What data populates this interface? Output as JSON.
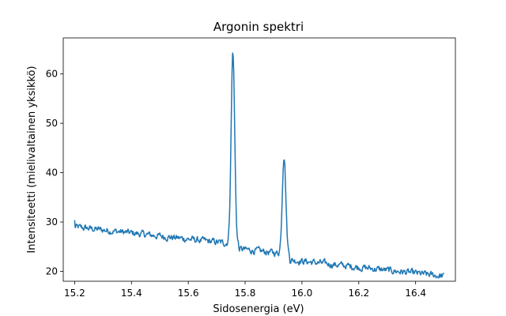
{
  "chart_data": {
    "type": "line",
    "title": "Argonin spektri",
    "xlabel": "Sidosenergia (eV)",
    "ylabel": "Intensiteetti (mielivaltainen yksikkö)",
    "xlim": [
      15.16,
      16.54
    ],
    "ylim": [
      18.0,
      67.3
    ],
    "xticks": [
      15.2,
      15.4,
      15.6,
      15.8,
      16.0,
      16.2,
      16.4
    ],
    "xtick_labels": [
      "15.2",
      "15.4",
      "15.6",
      "15.8",
      "16.0",
      "16.2",
      "16.4"
    ],
    "yticks": [
      20,
      30,
      40,
      50,
      60
    ],
    "ytick_labels": [
      "20",
      "30",
      "40",
      "50",
      "60"
    ],
    "grid": false,
    "color": "#1f77b4",
    "series": [
      {
        "x_start": 15.2,
        "x_end": 16.5,
        "baseline": {
          "start": 29.0,
          "end": 21.0
        },
        "noise_amplitude": 0.35,
        "peaks": [
          {
            "center": 15.757,
            "height": 39.0,
            "width": 0.0062
          },
          {
            "center": 15.937,
            "height": 20.0,
            "width": 0.0062
          }
        ],
        "steps": [
          {
            "at": 15.757,
            "delta": -0.9
          },
          {
            "at": 15.937,
            "delta": -1.1
          }
        ],
        "points": 650
      }
    ]
  }
}
